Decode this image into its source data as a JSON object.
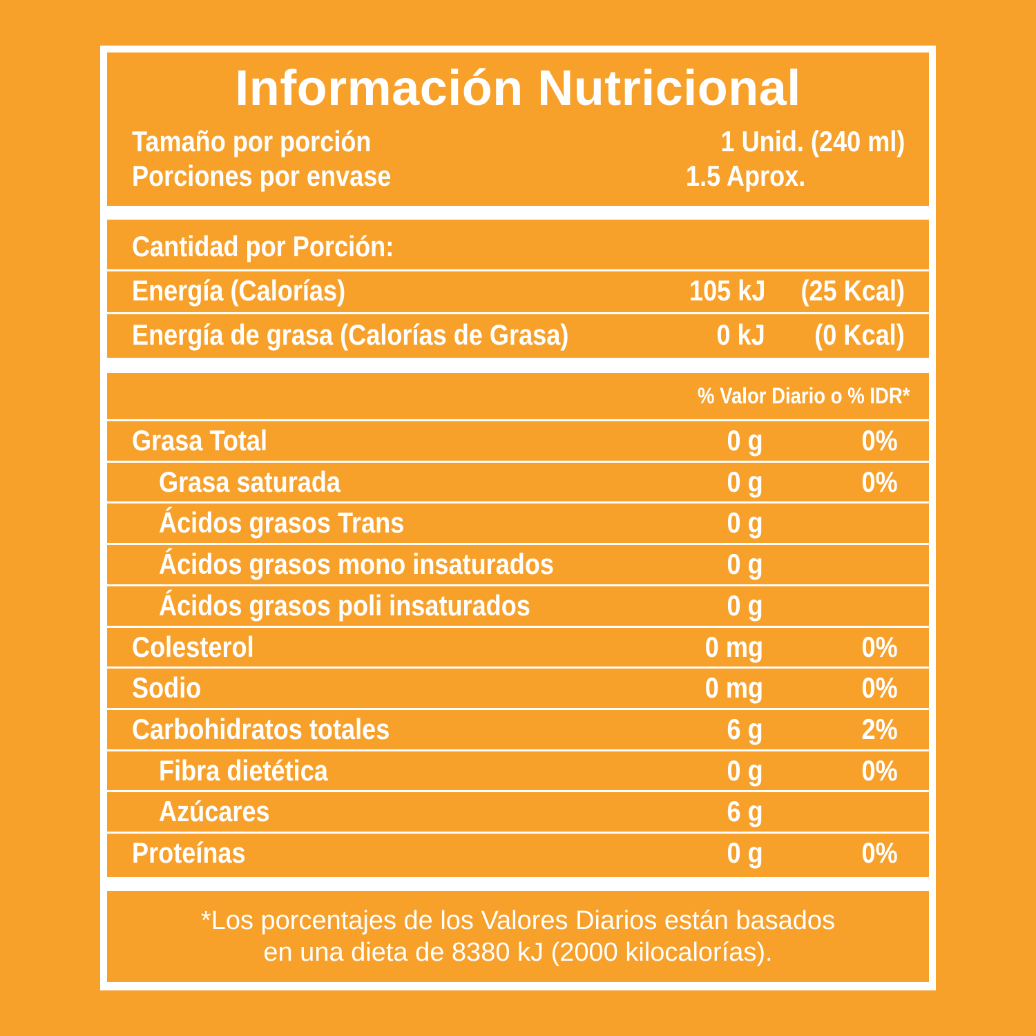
{
  "header": {
    "title": "Información Nutricional",
    "serving_size_label": "Tamaño por porción",
    "serving_size_value": "1 Unid. (240 ml)",
    "servings_label": "Porciones por envase",
    "servings_value": "1.5 Aprox."
  },
  "energy": {
    "amount_per_serving_label": "Cantidad por Porción:",
    "calories_label": "Energía (Calorías)",
    "calories_kj": "105 kJ",
    "calories_kcal": "(25 Kcal)",
    "fat_calories_label": "Energía de grasa (Calorías de Grasa)",
    "fat_calories_kj": "0 kJ",
    "fat_calories_kcal": "(0 Kcal)"
  },
  "nutrients": {
    "daily_value_header": "% Valor Diario o % IDR*",
    "rows": [
      {
        "name": "Grasa Total",
        "amount": "0 g",
        "dv": "0%"
      },
      {
        "name": "Grasa saturada",
        "amount": "0 g",
        "dv": "0%"
      },
      {
        "name": "Ácidos grasos Trans",
        "amount": "0 g",
        "dv": ""
      },
      {
        "name": "Ácidos grasos mono insaturados",
        "amount": "0 g",
        "dv": ""
      },
      {
        "name": "Ácidos grasos poli insaturados",
        "amount": "0 g",
        "dv": ""
      },
      {
        "name": "Colesterol",
        "amount": "0 mg",
        "dv": "0%"
      },
      {
        "name": "Sodio",
        "amount": "0 mg",
        "dv": "0%"
      },
      {
        "name": "Carbohidratos totales",
        "amount": "6 g",
        "dv": "2%"
      },
      {
        "name": "Fibra dietética",
        "amount": "0 g",
        "dv": "0%"
      },
      {
        "name": "Azúcares",
        "amount": "6 g",
        "dv": ""
      },
      {
        "name": "Proteínas",
        "amount": "0 g",
        "dv": "0%"
      }
    ]
  },
  "footnote": {
    "line1": "*Los porcentajes de los Valores Diarios están basados",
    "line2": "en una dieta de 8380 kJ (2000 kilocalorías)."
  },
  "colors": {
    "background": "#F7A02A",
    "text": "#FFFFFF",
    "frame": "#FFFFFF"
  }
}
